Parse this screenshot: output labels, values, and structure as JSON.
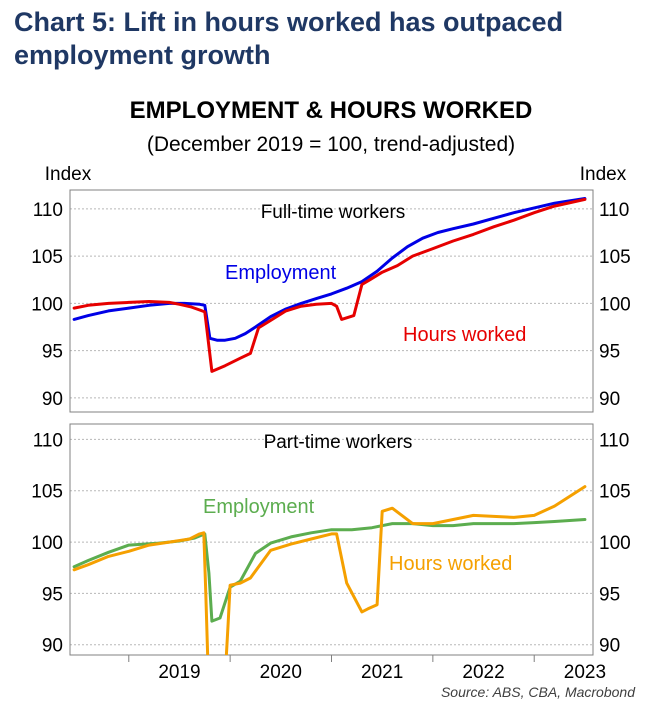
{
  "heading": "Chart 5: Lift in hours worked has outpaced employment growth",
  "chart_title": "EMPLOYMENT & HOURS WORKED",
  "chart_subtitle": "(December 2019 = 100, trend-adjusted)",
  "source": "Source: ABS, CBA, Macrobond",
  "colors": {
    "heading": "#1f3864",
    "ft_employment": "#0000e6",
    "ft_hours": "#e60000",
    "pt_employment": "#5cad4f",
    "pt_hours": "#f5a000",
    "grid": "#b8b8b8"
  },
  "chart_data": [
    {
      "type": "line",
      "panel": "top",
      "title": "Full-time workers",
      "ylabel_left": "Index",
      "ylabel_right": "Index",
      "ylim": [
        88.5,
        112
      ],
      "yticks": [
        90,
        95,
        100,
        105,
        110
      ],
      "xlim": [
        2018.42,
        2023.58
      ],
      "xticks": [
        "2019",
        "2020",
        "2021",
        "2022",
        "2023"
      ],
      "grid": true,
      "series": [
        {
          "name": "Employment",
          "x": [
            2018.46,
            2018.6,
            2018.8,
            2019.0,
            2019.2,
            2019.4,
            2019.55,
            2019.7,
            2019.75,
            2019.8,
            2019.87,
            2019.95,
            2020.05,
            2020.15,
            2020.25,
            2020.4,
            2020.55,
            2020.7,
            2020.85,
            2021.0,
            2021.15,
            2021.3,
            2021.45,
            2021.6,
            2021.75,
            2021.9,
            2022.05,
            2022.2,
            2022.4,
            2022.6,
            2022.8,
            2023.0,
            2023.2,
            2023.5
          ],
          "y": [
            98.3,
            98.7,
            99.2,
            99.5,
            99.8,
            100.0,
            100.0,
            99.9,
            99.8,
            96.3,
            96.1,
            96.1,
            96.3,
            96.8,
            97.5,
            98.6,
            99.4,
            100.0,
            100.5,
            101.0,
            101.6,
            102.3,
            103.4,
            104.8,
            106.0,
            106.9,
            107.5,
            107.9,
            108.4,
            109.0,
            109.6,
            110.1,
            110.6,
            111.1
          ]
        },
        {
          "name": "Hours worked",
          "x": [
            2018.46,
            2018.6,
            2018.8,
            2019.0,
            2019.2,
            2019.4,
            2019.5,
            2019.62,
            2019.7,
            2019.75,
            2019.82,
            2019.95,
            2020.1,
            2020.2,
            2020.28,
            2020.4,
            2020.55,
            2020.7,
            2020.85,
            2021.0,
            2021.05,
            2021.1,
            2021.22,
            2021.3,
            2021.38,
            2021.5,
            2021.65,
            2021.8,
            2022.0,
            2022.2,
            2022.4,
            2022.6,
            2022.8,
            2023.0,
            2023.2,
            2023.5
          ],
          "y": [
            99.5,
            99.8,
            100.0,
            100.1,
            100.2,
            100.1,
            99.9,
            99.6,
            99.3,
            99.1,
            92.8,
            93.4,
            94.2,
            94.7,
            97.4,
            98.2,
            99.2,
            99.7,
            99.9,
            100.0,
            99.7,
            98.3,
            98.7,
            102.0,
            102.5,
            103.3,
            104.0,
            105.0,
            105.8,
            106.6,
            107.3,
            108.1,
            108.8,
            109.6,
            110.3,
            111.0
          ]
        }
      ],
      "annotations": [
        {
          "text": "Employment",
          "series": "Employment"
        },
        {
          "text": "Hours worked",
          "series": "Hours worked"
        }
      ]
    },
    {
      "type": "line",
      "panel": "bottom",
      "title": "Part-time workers",
      "ylim": [
        89,
        111.5
      ],
      "yticks": [
        90,
        95,
        100,
        105,
        110
      ],
      "xlim": [
        2018.42,
        2023.58
      ],
      "xticks": [
        "2019",
        "2020",
        "2021",
        "2022",
        "2023"
      ],
      "grid": true,
      "series": [
        {
          "name": "Employment",
          "x": [
            2018.46,
            2018.6,
            2018.8,
            2019.0,
            2019.15,
            2019.3,
            2019.5,
            2019.65,
            2019.75,
            2019.79,
            2019.82,
            2019.9,
            2020.0,
            2020.1,
            2020.25,
            2020.4,
            2020.6,
            2020.8,
            2021.0,
            2021.2,
            2021.4,
            2021.6,
            2021.8,
            2022.0,
            2022.2,
            2022.4,
            2022.6,
            2022.8,
            2023.0,
            2023.2,
            2023.5
          ],
          "y": [
            97.6,
            98.2,
            99.0,
            99.7,
            99.8,
            99.9,
            100.1,
            100.4,
            100.8,
            97.0,
            92.3,
            92.6,
            95.6,
            96.2,
            98.9,
            99.9,
            100.5,
            100.9,
            101.2,
            101.2,
            101.4,
            101.8,
            101.8,
            101.6,
            101.6,
            101.8,
            101.8,
            101.8,
            101.9,
            102.0,
            102.2
          ]
        },
        {
          "name": "Hours worked",
          "x": [
            2018.46,
            2018.6,
            2018.8,
            2019.0,
            2019.2,
            2019.4,
            2019.6,
            2019.7,
            2019.74,
            2019.76,
            2019.78,
            2019.96,
            2019.98,
            2020.0,
            2020.1,
            2020.2,
            2020.4,
            2020.6,
            2020.8,
            2021.0,
            2021.05,
            2021.15,
            2021.3,
            2021.36,
            2021.45,
            2021.5,
            2021.6,
            2021.8,
            2022.0,
            2022.2,
            2022.4,
            2022.6,
            2022.8,
            2023.0,
            2023.2,
            2023.5
          ],
          "y": [
            97.3,
            97.8,
            98.6,
            99.1,
            99.7,
            100.0,
            100.3,
            100.8,
            100.9,
            95.0,
            88.5,
            88.5,
            92.0,
            95.8,
            96.0,
            96.5,
            99.2,
            99.8,
            100.3,
            100.8,
            100.8,
            96.0,
            93.2,
            93.5,
            93.9,
            103.0,
            103.3,
            101.8,
            101.8,
            102.2,
            102.6,
            102.5,
            102.4,
            102.6,
            103.5,
            105.4
          ]
        }
      ],
      "annotations": [
        {
          "text": "Employment",
          "series": "Employment"
        },
        {
          "text": "Hours worked",
          "series": "Hours worked"
        }
      ]
    }
  ]
}
